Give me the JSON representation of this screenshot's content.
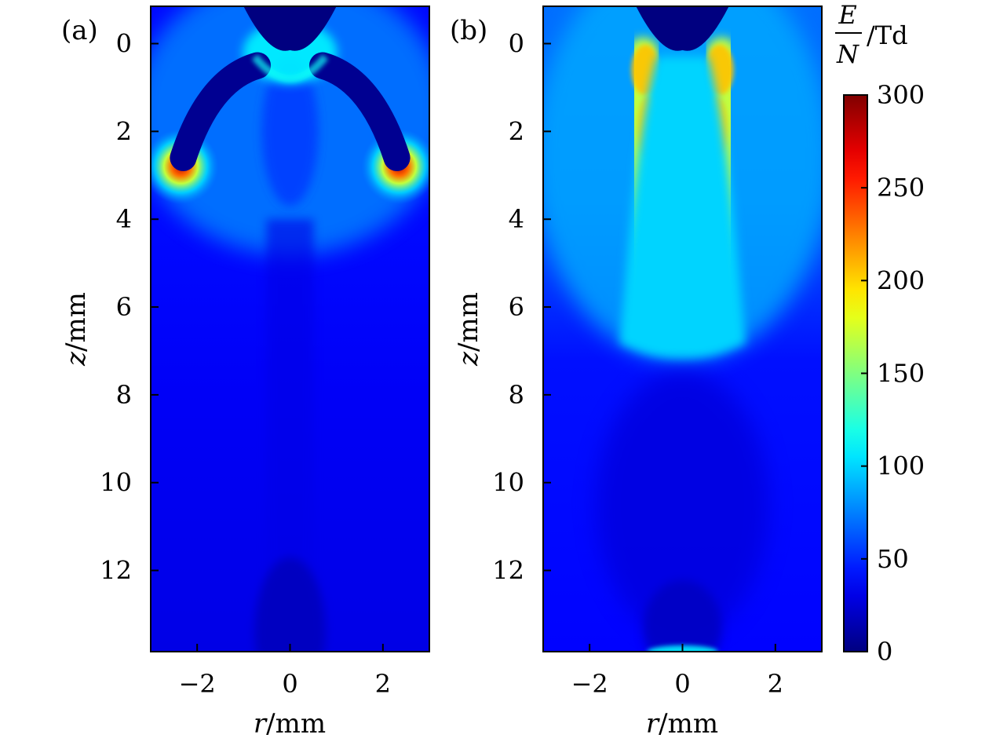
{
  "chart_data": [
    {
      "type": "heatmap",
      "panel_label": "(a)",
      "xlabel_var": "r",
      "xlabel_unit": "/mm",
      "ylabel_var": "z",
      "ylabel_unit": "/mm",
      "xlim": [
        -3,
        3
      ],
      "ylim": [
        -0.85,
        13.85
      ],
      "y_inverted": true,
      "xticks": [
        -2,
        0,
        2
      ],
      "yticks": [
        0,
        2,
        4,
        6,
        8,
        10,
        12
      ],
      "colormap": "jet",
      "field": "E/N reduced electric field (Td)",
      "features": [
        {
          "kind": "electrode-tip",
          "center_r": 0,
          "tip_z": 0.15,
          "value": 0
        },
        {
          "kind": "low-field-channel",
          "from_r": -0.7,
          "from_z": 0.5,
          "to_r": -2.3,
          "to_z": 2.6,
          "value": 5
        },
        {
          "kind": "low-field-channel",
          "from_r": 0.7,
          "from_z": 0.5,
          "to_r": 2.3,
          "to_z": 2.6,
          "value": 5
        },
        {
          "kind": "streamer-head",
          "r": -2.35,
          "z": 2.8,
          "peak_value": 280
        },
        {
          "kind": "streamer-head",
          "r": 2.35,
          "z": 2.8,
          "peak_value": 280
        }
      ]
    },
    {
      "type": "heatmap",
      "panel_label": "(b)",
      "xlabel_var": "r",
      "xlabel_unit": "/mm",
      "ylabel_var": "z",
      "ylabel_unit": "/mm",
      "xlim": [
        -3,
        3
      ],
      "ylim": [
        -0.85,
        13.85
      ],
      "y_inverted": true,
      "xticks": [
        -2,
        0,
        2
      ],
      "yticks": [
        0,
        2,
        4,
        6,
        8,
        10,
        12
      ],
      "colormap": "jet",
      "field": "E/N reduced electric field (Td)",
      "features": [
        {
          "kind": "electrode-tip",
          "center_r": 0,
          "tip_z": 0.15,
          "value": 0
        },
        {
          "kind": "conductive-channel",
          "center_r": 0,
          "z_range": [
            0.3,
            7.0
          ],
          "value": 100
        },
        {
          "kind": "channel-edge",
          "r": -0.8,
          "z_range": [
            0.2,
            4.5
          ],
          "peak_value": 195
        },
        {
          "kind": "channel-edge",
          "r": 0.8,
          "z_range": [
            0.2,
            4.5
          ],
          "peak_value": 195
        }
      ]
    }
  ],
  "colorbar": {
    "label_num": "E",
    "label_den": "N",
    "label_unit": "/Td",
    "range": [
      0,
      300
    ],
    "ticks": [
      0,
      50,
      100,
      150,
      200,
      250,
      300
    ]
  }
}
